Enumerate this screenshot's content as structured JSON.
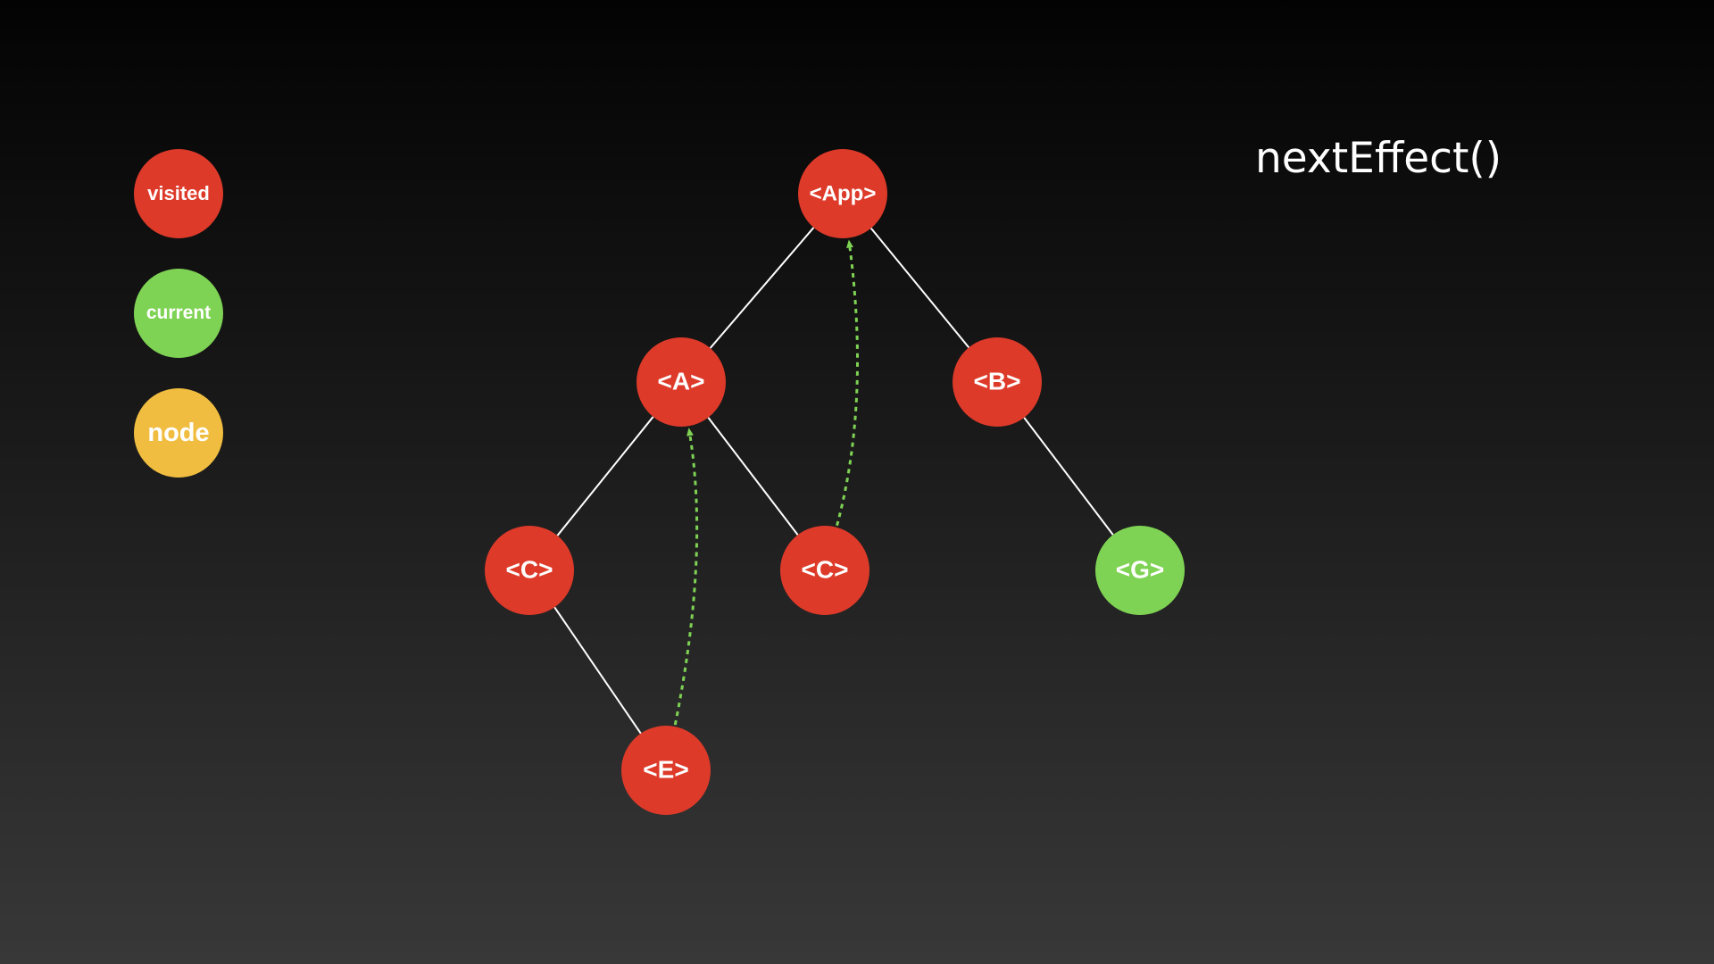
{
  "colors": {
    "visited": "#dd3a2a",
    "current": "#7fd354",
    "node": "#f0bd40",
    "edge": "#ffffff",
    "pointer": "#7fd354"
  },
  "legend": {
    "visited": "visited",
    "current": "current",
    "node": "node"
  },
  "function_label": "nextEffect()",
  "tree": {
    "nodes": [
      {
        "id": "app",
        "label": "<App>",
        "state": "visited"
      },
      {
        "id": "a",
        "label": "<A>",
        "state": "visited"
      },
      {
        "id": "b",
        "label": "<B>",
        "state": "visited"
      },
      {
        "id": "c1",
        "label": "<C>",
        "state": "visited"
      },
      {
        "id": "c2",
        "label": "<C>",
        "state": "visited"
      },
      {
        "id": "g",
        "label": "<G>",
        "state": "current"
      },
      {
        "id": "e",
        "label": "<E>",
        "state": "visited"
      }
    ],
    "edges": [
      {
        "from": "app",
        "to": "a"
      },
      {
        "from": "app",
        "to": "b"
      },
      {
        "from": "a",
        "to": "c1"
      },
      {
        "from": "a",
        "to": "c2"
      },
      {
        "from": "b",
        "to": "g"
      },
      {
        "from": "c1",
        "to": "e"
      }
    ],
    "return_arrows": [
      {
        "from": "e",
        "to": "a"
      },
      {
        "from": "c2",
        "to": "app"
      }
    ]
  }
}
